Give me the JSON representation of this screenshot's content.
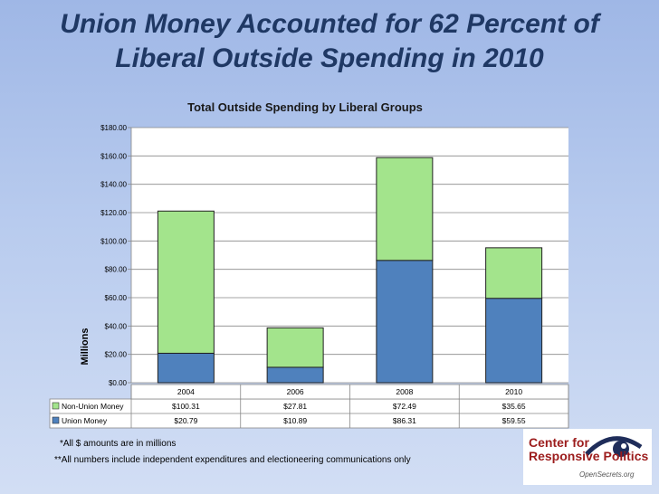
{
  "slide": {
    "title": "Union Money Accounted for 62 Percent of Liberal Outside Spending in 2010"
  },
  "chart_data": {
    "type": "bar",
    "stacked": true,
    "title": "Total Outside Spending by Liberal Groups",
    "xlabel": "",
    "ylabel": "Millions",
    "ylim": [
      0,
      180
    ],
    "ytick_step": 20,
    "ytick_labels": [
      "$0.00",
      "$20.00",
      "$40.00",
      "$60.00",
      "$80.00",
      "$100.00",
      "$120.00",
      "$140.00",
      "$160.00",
      "$180.00"
    ],
    "grid": true,
    "categories": [
      "2004",
      "2006",
      "2008",
      "2010"
    ],
    "series": [
      {
        "name": "Union Money",
        "color": "#4f81bd",
        "values": [
          20.79,
          10.89,
          86.31,
          59.55
        ],
        "labels": [
          "$20.79",
          "$10.89",
          "$86.31",
          "$59.55"
        ]
      },
      {
        "name": "Non-Union Money",
        "color": "#a3e48c",
        "values": [
          100.31,
          27.81,
          72.49,
          35.65
        ],
        "labels": [
          "$100.31",
          "$27.81",
          "$72.49",
          "$35.65"
        ]
      }
    ],
    "data_table": true
  },
  "footnotes": {
    "note1": "*All $ amounts are in millions",
    "note2": "**All numbers include independent expenditures and electioneering communications only"
  },
  "logo": {
    "line1": "Center for",
    "line2": "Responsive Politics",
    "site": "OpenSecrets.org",
    "accent_color": "#9c1c1c"
  }
}
